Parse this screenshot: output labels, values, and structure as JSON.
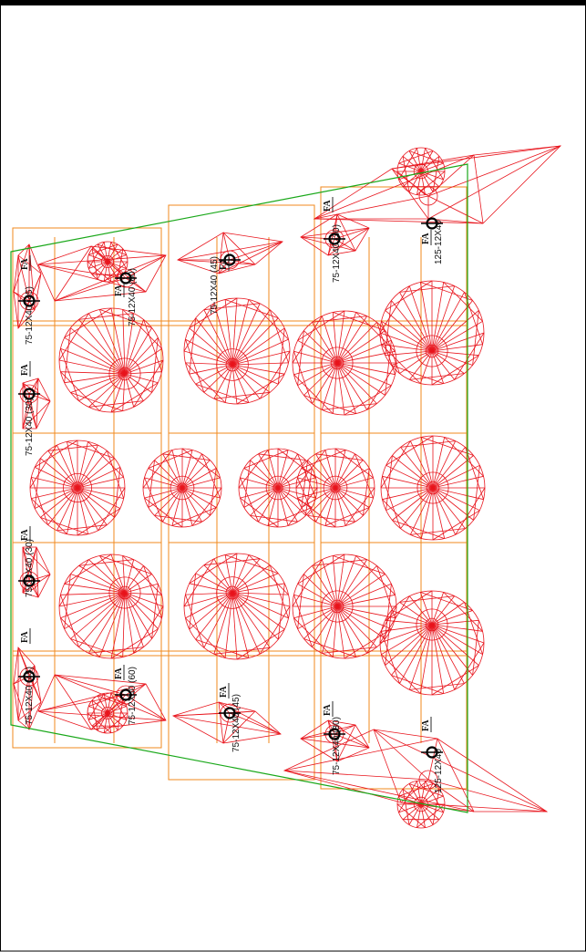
{
  "drawing": {
    "colors": {
      "outline": "#1aa81a",
      "grid": "#f08a1e",
      "photometric": "#e8141c",
      "fixture": "#000000",
      "frame": "#000000"
    },
    "fixtures": [
      {
        "label": "75-12X40 (45)",
        "tag": "FA"
      },
      {
        "label": "75-12X40 (30)",
        "tag": "FA"
      },
      {
        "label": "75-12X40 (30)",
        "tag": "FA"
      },
      {
        "label": "75-12X40 (45)",
        "tag": "FA"
      },
      {
        "label": "75-12X40 (60)",
        "tag": "FA"
      },
      {
        "label": "75-12X40 (60)",
        "tag": "FA"
      },
      {
        "label": "75-12X40 (45)",
        "tag": "FA"
      },
      {
        "label": "75-12X40 (45)",
        "tag": "FA"
      },
      {
        "label": "75-12X40 (30)",
        "tag": "FA"
      },
      {
        "label": "75-12X40 (30)",
        "tag": "FA"
      },
      {
        "label": "125-12X40",
        "tag": "FA"
      },
      {
        "label": "125-12X40",
        "tag": "FA"
      }
    ]
  }
}
